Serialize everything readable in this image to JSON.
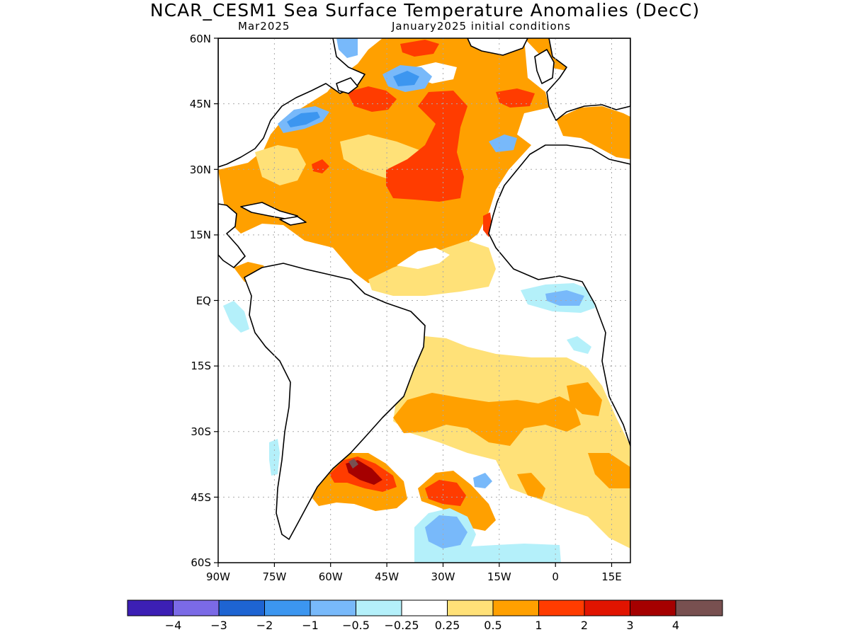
{
  "header": {
    "title": "NCAR_CESM1 Sea Surface Temperature Anomalies (DecC)",
    "valid_month": "Mar2025",
    "init_text": "January2025 initial conditions"
  },
  "map": {
    "lat_ticks": [
      "60N",
      "45N",
      "30N",
      "15N",
      "EQ",
      "15S",
      "30S",
      "45S",
      "60S"
    ],
    "lon_ticks": [
      "90W",
      "75W",
      "60W",
      "45W",
      "30W",
      "15W",
      "0",
      "15E"
    ],
    "extent": {
      "lon_min": -90,
      "lon_max": 20,
      "lat_min": -60,
      "lat_max": 60
    }
  },
  "colorbar": {
    "colors": [
      "#3c1fb4",
      "#7b6ae6",
      "#1e64d2",
      "#3c96f0",
      "#78b9fa",
      "#b4f0fa",
      "#ffffff",
      "#ffe178",
      "#ffa000",
      "#ff3c00",
      "#e11400",
      "#a50000",
      "#785050"
    ],
    "labels": [
      "−4",
      "−3",
      "−2",
      "−1",
      "−0.5",
      "−0.25",
      "0.25",
      "0.5",
      "1",
      "2",
      "3",
      "4"
    ]
  },
  "colors": {
    "land": "#ffffff",
    "coast": "#000000",
    "grid": "#aaaaaa"
  }
}
